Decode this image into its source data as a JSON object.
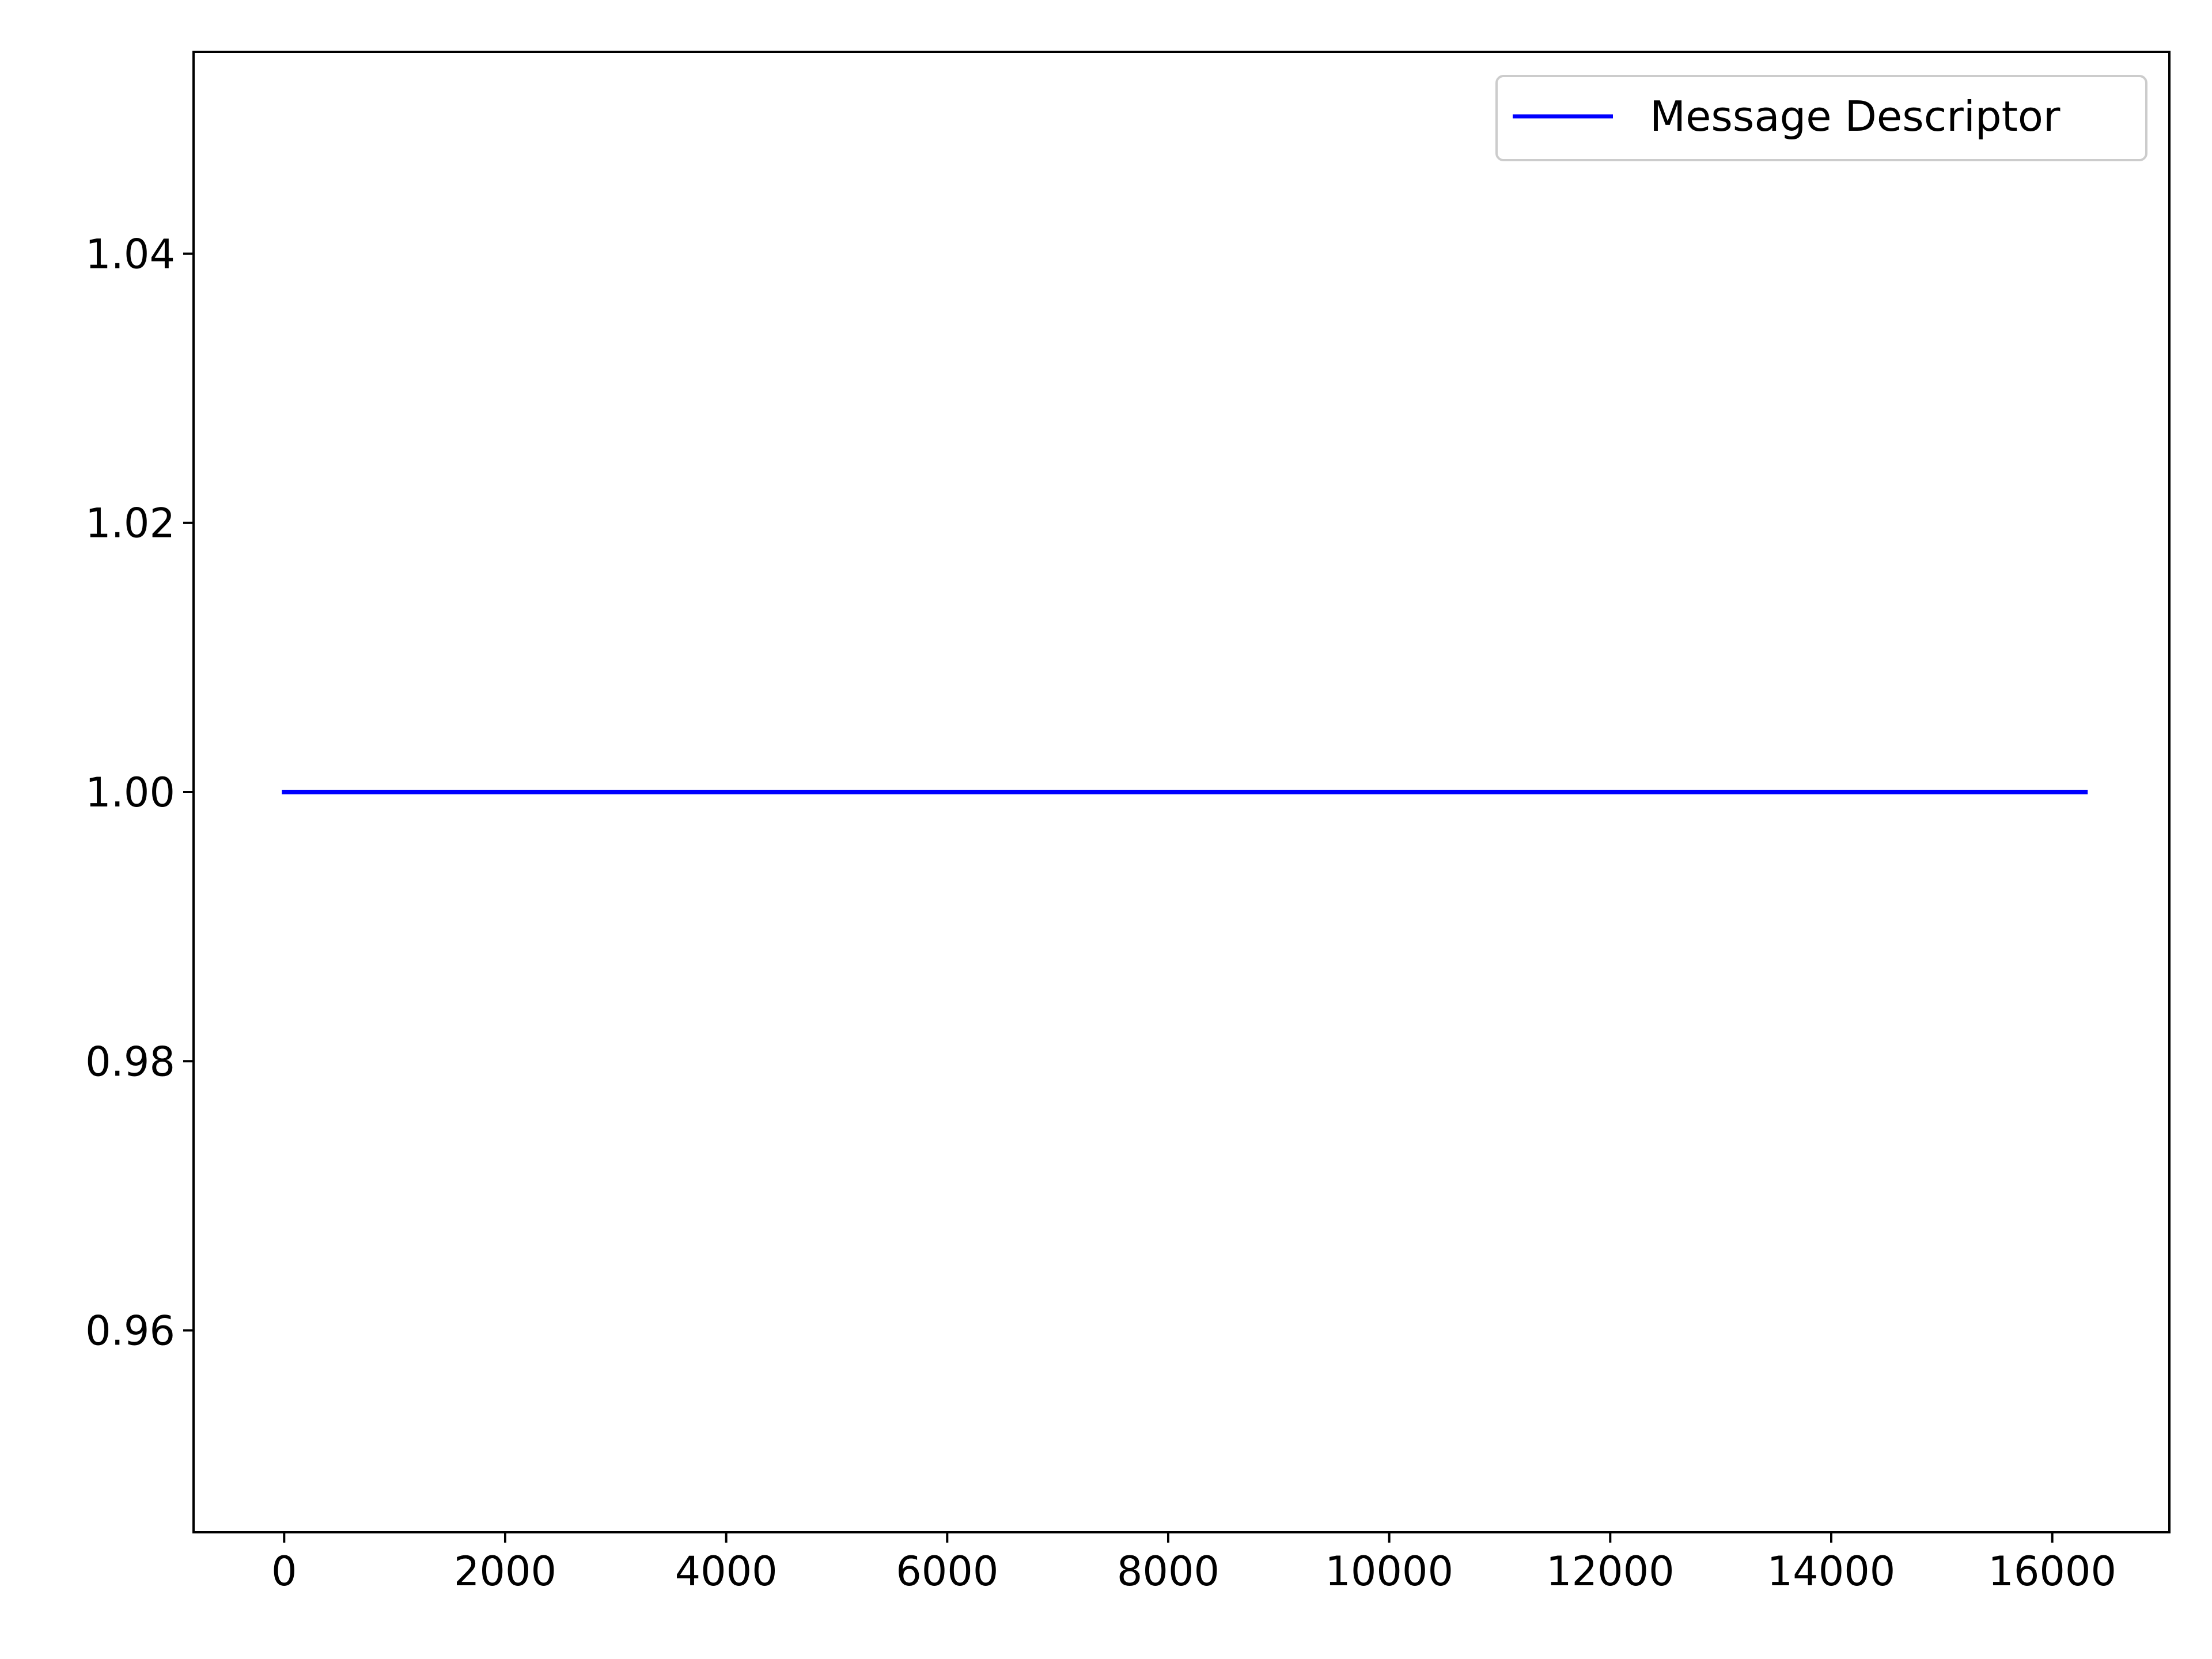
{
  "chart_data": {
    "type": "line",
    "title": "",
    "xlabel": "",
    "ylabel": "",
    "xlim": [
      -820,
      17060
    ],
    "ylim": [
      0.945,
      1.055
    ],
    "xticks": [
      0,
      2000,
      4000,
      6000,
      8000,
      10000,
      12000,
      14000,
      16000
    ],
    "xtick_labels": [
      "0",
      "2000",
      "4000",
      "6000",
      "8000",
      "10000",
      "12000",
      "14000",
      "16000"
    ],
    "yticks": [
      0.96,
      0.98,
      1.0,
      1.02,
      1.04
    ],
    "ytick_labels": [
      "0.96",
      "0.98",
      "1.00",
      "1.02",
      "1.04"
    ],
    "grid": false,
    "legend": {
      "position": "top-right",
      "entries": [
        "Message Descriptor"
      ]
    },
    "series": [
      {
        "name": "Message Descriptor",
        "color": "#0000ff",
        "x": [
          0,
          16300
        ],
        "y": [
          1.0,
          1.0
        ]
      }
    ]
  }
}
